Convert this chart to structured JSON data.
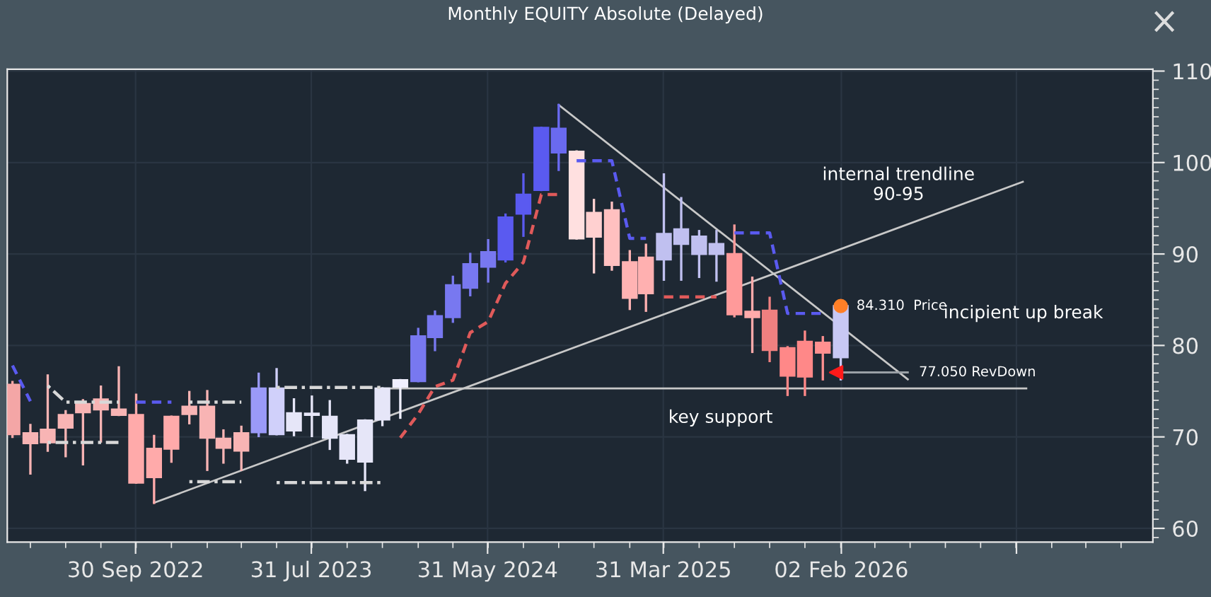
{
  "chart_data": {
    "type": "candlestick",
    "title": "Monthly EQUITY Absolute (Delayed)",
    "x": [
      "2022-03",
      "2022-04",
      "2022-05",
      "2022-06",
      "2022-07",
      "2022-08",
      "2022-09",
      "2022-10",
      "2022-11",
      "2022-12",
      "2023-01",
      "2023-02",
      "2023-03",
      "2023-04",
      "2023-05",
      "2023-06",
      "2023-07",
      "2023-08",
      "2023-09",
      "2023-10",
      "2023-11",
      "2023-12",
      "2024-01",
      "2024-02",
      "2024-03",
      "2024-04",
      "2024-05",
      "2024-06",
      "2024-07",
      "2024-08",
      "2024-09",
      "2024-10",
      "2024-11",
      "2024-12",
      "2025-01",
      "2025-02",
      "2025-03",
      "2025-04",
      "2025-05",
      "2025-06",
      "2025-07",
      "2025-08",
      "2025-09",
      "2025-10",
      "2025-11",
      "2025-12",
      "2026-01",
      "2026-02"
    ],
    "ohlc": [
      [
        75.7,
        76.0,
        70.0,
        70.3
      ],
      [
        70.4,
        71.3,
        66.0,
        69.3
      ],
      [
        70.8,
        76.7,
        68.5,
        69.4
      ],
      [
        72.4,
        72.8,
        67.9,
        71.0
      ],
      [
        73.6,
        74.0,
        67.0,
        72.7
      ],
      [
        74.1,
        75.5,
        69.5,
        73.0
      ],
      [
        73.0,
        77.6,
        72.4,
        72.4
      ],
      [
        72.4,
        74.6,
        65.0,
        65.0
      ],
      [
        68.7,
        70.1,
        62.8,
        65.6
      ],
      [
        72.2,
        72.2,
        67.3,
        68.7
      ],
      [
        73.3,
        74.9,
        71.5,
        72.5
      ],
      [
        73.3,
        75.0,
        66.4,
        69.9
      ],
      [
        69.8,
        70.7,
        67.2,
        68.8
      ],
      [
        70.4,
        71.1,
        66.4,
        68.5
      ],
      [
        70.5,
        76.9,
        70.1,
        75.3
      ],
      [
        70.3,
        77.4,
        70.3,
        75.3
      ],
      [
        70.7,
        74.1,
        70.2,
        72.6
      ],
      [
        72.4,
        74.4,
        70.1,
        72.5
      ],
      [
        69.9,
        73.9,
        68.7,
        72.2
      ],
      [
        67.6,
        70.2,
        67.2,
        70.2
      ],
      [
        67.3,
        71.8,
        64.2,
        71.8
      ],
      [
        71.9,
        75.3,
        71.3,
        75.3
      ],
      [
        75.5,
        76.2,
        72.1,
        76.2
      ],
      [
        76.1,
        81.8,
        76.1,
        81.0
      ],
      [
        80.9,
        83.7,
        79.5,
        83.2
      ],
      [
        83.1,
        87.5,
        82.6,
        86.6
      ],
      [
        86.3,
        90.0,
        85.5,
        88.9
      ],
      [
        88.6,
        91.5,
        87.0,
        90.2
      ],
      [
        89.4,
        94.3,
        89.2,
        94.0
      ],
      [
        94.4,
        98.7,
        92.0,
        96.5
      ],
      [
        97.0,
        103.8,
        97.0,
        103.8
      ],
      [
        101.1,
        106.3,
        99.2,
        103.7
      ],
      [
        101.2,
        101.2,
        91.7,
        91.7
      ],
      [
        94.5,
        95.9,
        88.0,
        91.9
      ],
      [
        94.8,
        95.6,
        88.3,
        88.8
      ],
      [
        89.1,
        90.3,
        84.0,
        85.2
      ],
      [
        89.6,
        91.0,
        83.8,
        85.7
      ],
      [
        89.4,
        98.7,
        87.2,
        92.2
      ],
      [
        91.1,
        96.1,
        87.2,
        92.7
      ],
      [
        90.0,
        92.5,
        87.5,
        91.9
      ],
      [
        90.0,
        92.5,
        87.1,
        91.1
      ],
      [
        90.0,
        93.1,
        83.2,
        83.4
      ],
      [
        83.7,
        87.4,
        79.3,
        83.1
      ],
      [
        83.8,
        85.2,
        78.3,
        79.5
      ],
      [
        79.7,
        79.8,
        74.6,
        76.7
      ],
      [
        80.4,
        81.5,
        74.6,
        76.6
      ],
      [
        80.3,
        80.9,
        76.3,
        79.2
      ],
      [
        78.7,
        84.31,
        76.3,
        84.31
      ]
    ],
    "colors": [
      "#f4a6a6",
      "#f8b4b4",
      "#f8b4b4",
      "#f8b4b4",
      "#f8b4b4",
      "#f8b4b4",
      "#f8b4b4",
      "#ffaaaa",
      "#ffaaaa",
      "#ffaaaa",
      "#f8b4b4",
      "#f8b4b4",
      "#f8b4b4",
      "#f8b4b4",
      "#9a9af8",
      "#d0d0fa",
      "#e6e6f8",
      "#e6e6f8",
      "#e6e6f8",
      "#e6e6f8",
      "#e6e6f8",
      "#e6e6f8",
      "#f0f0ff",
      "#7878f0",
      "#7878f0",
      "#7878f0",
      "#7878f0",
      "#7878f0",
      "#5a5af0",
      "#5a5af0",
      "#5a5af0",
      "#6a6af0",
      "#ffe0e0",
      "#ffd0d0",
      "#ffc0c0",
      "#ffb3b3",
      "#ffb0b0",
      "#c0c0f0",
      "#c0c0f0",
      "#c0c0f0",
      "#c0c0f0",
      "#ff9a9a",
      "#ffaaaa",
      "#f08080",
      "#ff8888",
      "#ff8888",
      "#ff9090",
      "#c8c8f4"
    ],
    "series": [
      {
        "type": "line",
        "x": [
          "2022-03",
          "2022-04",
          null,
          "2022-10",
          "2022-12",
          null,
          "2024-11",
          "2025-01",
          "2025-02",
          "2025-03",
          null,
          "2025-08",
          "2025-10",
          "2025-11",
          "2026-01"
        ],
        "values": [
          77.8,
          73.9,
          null,
          73.8,
          73.8,
          null,
          100.2,
          100.2,
          91.7,
          91.7,
          null,
          92.3,
          92.3,
          83.5,
          83.5
        ],
        "color": "#5a5af0",
        "line_style": "dashed"
      },
      {
        "type": "line",
        "x": [
          "2024-01",
          "2024-02",
          "2024-03",
          "2024-04",
          "2024-05",
          "2024-06",
          "2024-07",
          "2024-08",
          "2024-09",
          "2024-10",
          null,
          "2025-04",
          "2025-07"
        ],
        "values": [
          69.9,
          72.5,
          75.5,
          76.2,
          81.4,
          82.6,
          86.8,
          89.1,
          96.5,
          96.5,
          null,
          85.3,
          85.3
        ],
        "color": "#e05a5a",
        "line_style": "dashed"
      },
      {
        "type": "line",
        "x": [
          "2022-05",
          "2022-06",
          "2022-09"
        ],
        "values": [
          75.6,
          73.8,
          73.8
        ],
        "color": "#d8d8d8",
        "line_style": "dotted"
      },
      {
        "type": "line",
        "x": [
          "2022-05",
          "2022-09"
        ],
        "values": [
          69.4,
          69.4
        ],
        "color": "#d8d8d8",
        "line_style": "dotted"
      },
      {
        "type": "line",
        "x": [
          "2023-01",
          "2023-04"
        ],
        "values": [
          73.8,
          73.8
        ],
        "color": "#d8d8d8",
        "line_style": "dotted"
      },
      {
        "type": "line",
        "x": [
          "2023-06",
          "2023-12"
        ],
        "values": [
          75.4,
          75.4
        ],
        "color": "#d8d8d8",
        "line_style": "dotted"
      },
      {
        "type": "line",
        "x": [
          "2023-01",
          "2023-04"
        ],
        "values": [
          65.1,
          65.1
        ],
        "color": "#d8d8d8",
        "line_style": "dotted"
      },
      {
        "type": "line",
        "x": [
          "2023-06",
          "2023-12"
        ],
        "values": [
          65.0,
          65.0
        ],
        "color": "#d8d8d8",
        "line_style": "dotted"
      },
      {
        "type": "line",
        "x": [
          "2022-11",
          "2026-12-13"
        ],
        "values": [
          62.8,
          97.9
        ],
        "color": "#c8c8c8",
        "line_style": "solid"
      },
      {
        "type": "line",
        "x": [
          "2024-10",
          "2026-05-28"
        ],
        "values": [
          106.3,
          76.3
        ],
        "color": "#c8c8c8",
        "line_style": "solid"
      },
      {
        "type": "line",
        "x": [
          "2023-12",
          "2026-12-19"
        ],
        "values": [
          75.3,
          75.3
        ],
        "color": "#c8c8c8",
        "line_style": "solid"
      },
      {
        "type": "line",
        "x": [
          "2026-02",
          "2026-05-28"
        ],
        "values": [
          77.05,
          77.05
        ],
        "color": "#9aa0a6",
        "line_style": "solid"
      },
      {
        "type": "scatter",
        "x": [
          "2026-02"
        ],
        "values": [
          84.31
        ],
        "color": "#ff7f27",
        "marker": "circle"
      },
      {
        "type": "scatter",
        "x": [
          "2026-01-24"
        ],
        "values": [
          77.05
        ],
        "color": "#ff1a1a",
        "marker": "triangle"
      }
    ],
    "annotations": [
      {
        "text": "84.310  Price",
        "x": "2026-02",
        "y": 84.31
      },
      {
        "text": "77.050 RevDown",
        "x": "2026-05-20",
        "y": 77.05
      },
      "internal trendline\n90-95",
      "incipient up break",
      "key support"
    ],
    "xlim": [
      "2022-02-20",
      "2027-07-26"
    ],
    "xticks": [
      {
        "value": "2022-09-30",
        "label": "30 Sep 2022"
      },
      {
        "value": "2023-07-31",
        "label": "31 Jul 2023"
      },
      {
        "value": "2024-05-31",
        "label": "31 May 2024"
      },
      {
        "value": "2025-03-31",
        "label": "31 Mar 2025"
      },
      {
        "value": "2026-02-02",
        "label": "02 Feb 2026"
      },
      {
        "value": "2026-12-02",
        "label": null
      }
    ],
    "ylim": [
      58.5,
      110.2
    ],
    "yticks": [
      60,
      70,
      80,
      90,
      100,
      110
    ],
    "grid": true
  }
}
